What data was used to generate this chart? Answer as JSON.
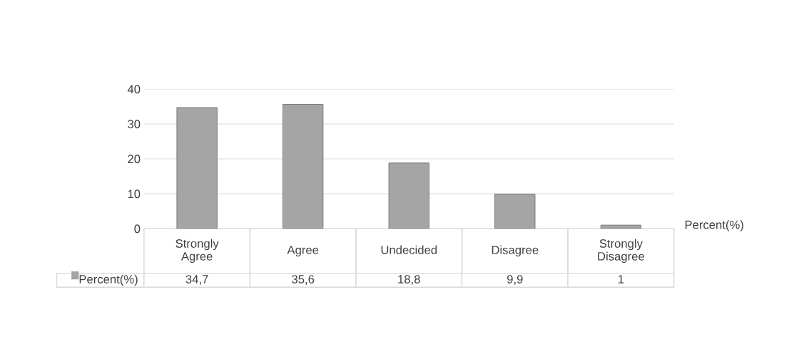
{
  "chart_data": {
    "type": "bar",
    "categories": [
      "Strongly Agree",
      "Agree",
      "Undecided",
      "Disagree",
      "Strongly Disagree"
    ],
    "series": [
      {
        "name": "Percent(%)",
        "color": "#a5a5a5",
        "values": [
          34.7,
          35.6,
          18.8,
          9.9,
          1
        ],
        "value_labels": [
          "34,7",
          "35,6",
          "18,8",
          "9,9",
          "1"
        ]
      }
    ],
    "ylim": [
      0,
      40
    ],
    "yticks": [
      0,
      10,
      20,
      30,
      40
    ],
    "grid": "y",
    "legend": "bottom"
  }
}
